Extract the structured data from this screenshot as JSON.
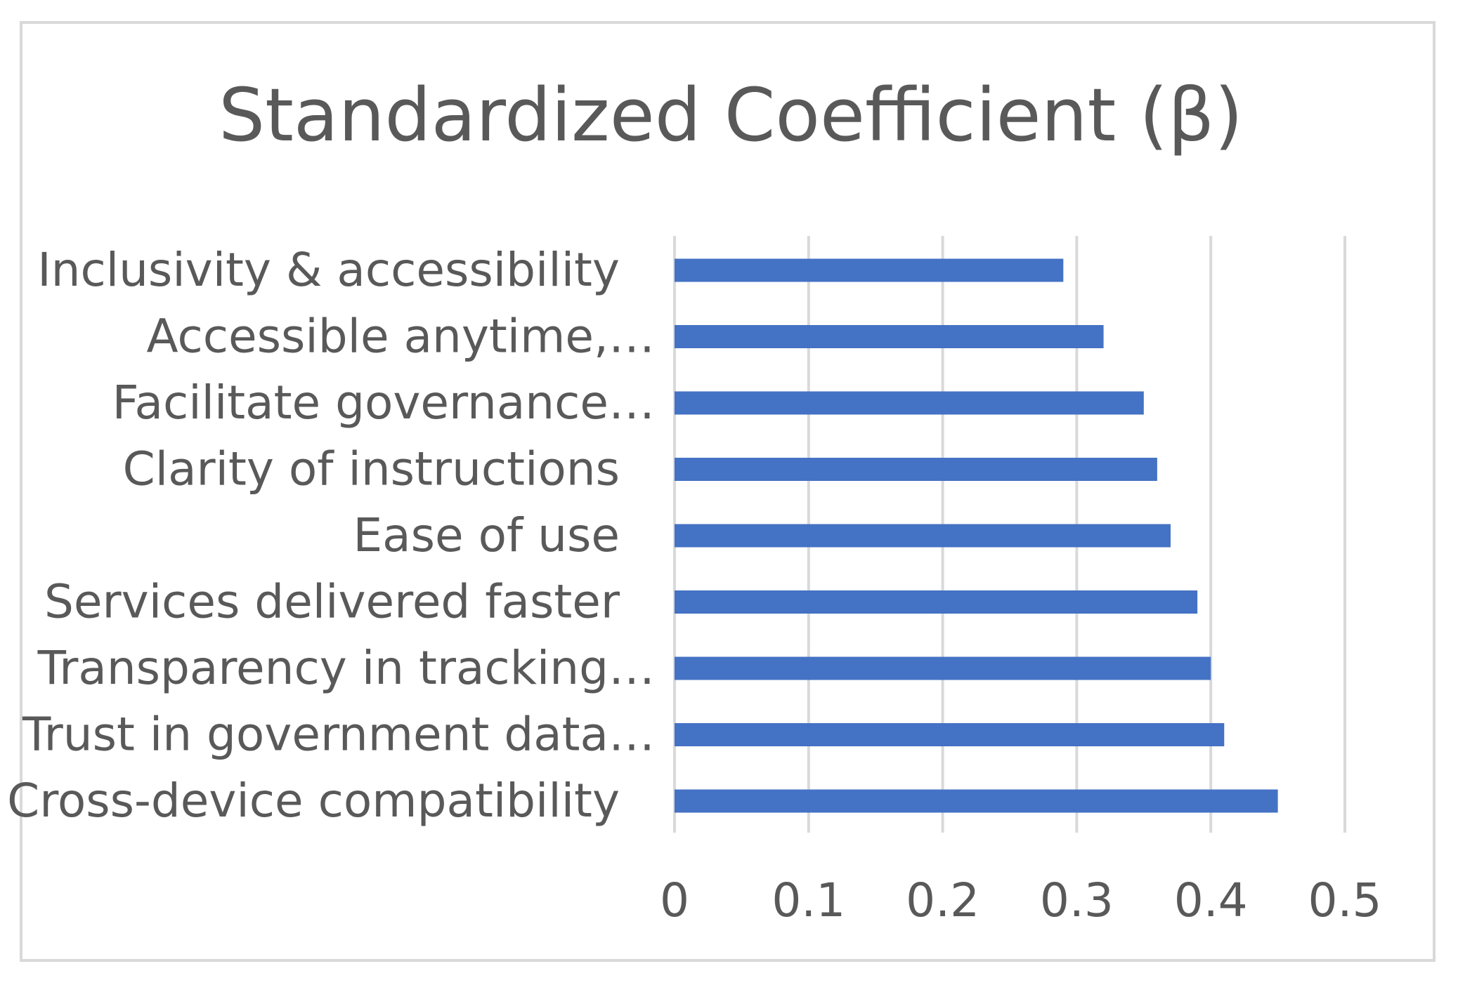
{
  "chart_data": {
    "type": "bar",
    "orientation": "horizontal",
    "title": "Standardized Coefficient (β)",
    "xlabel": "",
    "ylabel": "",
    "categories": [
      "Inclusivity & accessibility",
      "Accessible anytime,…",
      "Facilitate governance…",
      "Clarity of instructions",
      "Ease of use",
      "Services delivered faster",
      "Transparency in tracking…",
      "Trust in government data…",
      "Cross-device compatibility"
    ],
    "values": [
      0.29,
      0.32,
      0.35,
      0.36,
      0.37,
      0.39,
      0.4,
      0.41,
      0.45
    ],
    "xlim": [
      0,
      0.5
    ],
    "xticks": [
      "0",
      "0.1",
      "0.2",
      "0.3",
      "0.4",
      "0.5"
    ],
    "grid": true,
    "legend": "none",
    "bar_color": "#4472c4"
  }
}
